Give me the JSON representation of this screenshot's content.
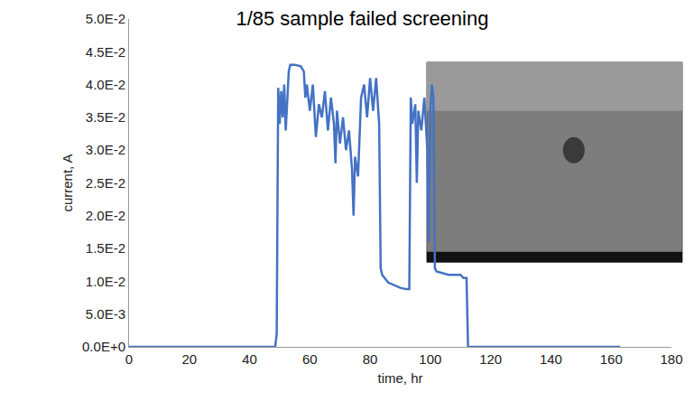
{
  "chart_data": {
    "type": "line",
    "title": "1/85 sample failed screening",
    "x_label": "time, hr",
    "y_label": "current, A",
    "color": "#4472c4",
    "grid": false,
    "x": [
      0,
      48.5,
      49,
      49.5,
      50,
      50.5,
      51,
      51.5,
      52,
      52.5,
      53,
      53.5,
      55,
      57,
      58,
      58.5,
      59,
      60,
      61,
      62,
      63,
      64,
      65,
      66,
      67,
      68,
      68.5,
      69,
      70,
      71,
      72,
      73,
      74,
      74.5,
      75,
      76,
      77,
      78,
      79,
      80,
      81,
      82,
      83,
      83.5,
      84,
      86,
      88,
      90,
      92,
      93,
      93.5,
      94,
      95,
      95.5,
      96,
      97,
      98,
      99,
      99.5,
      100,
      100.5,
      101,
      101.5,
      102,
      106,
      110,
      111,
      112,
      112.5,
      163
    ],
    "values": [
      0,
      0,
      0.002,
      0.0395,
      0.034,
      0.039,
      0.035,
      0.04,
      0.033,
      0.038,
      0.042,
      0.043,
      0.043,
      0.0428,
      0.042,
      0.038,
      0.04,
      0.036,
      0.04,
      0.032,
      0.037,
      0.035,
      0.039,
      0.033,
      0.038,
      0.034,
      0.028,
      0.036,
      0.031,
      0.035,
      0.03,
      0.033,
      0.027,
      0.02,
      0.029,
      0.026,
      0.038,
      0.04,
      0.035,
      0.041,
      0.036,
      0.041,
      0.034,
      0.012,
      0.011,
      0.0098,
      0.0094,
      0.009,
      0.0088,
      0.0088,
      0.038,
      0.034,
      0.037,
      0.025,
      0.036,
      0.033,
      0.038,
      0.03,
      0.016,
      0.036,
      0.04,
      0.038,
      0.012,
      0.0115,
      0.011,
      0.011,
      0.0105,
      0.0105,
      0,
      0
    ],
    "xlim": [
      0,
      180
    ],
    "xticks": [
      0,
      20,
      40,
      60,
      80,
      100,
      120,
      140,
      160,
      180
    ],
    "ylim": [
      0,
      0.05
    ],
    "yticks": [
      {
        "value": 0,
        "label": "0.0E+0"
      },
      {
        "value": 0.005,
        "label": "5.0E-3"
      },
      {
        "value": 0.01,
        "label": "1.0E-2"
      },
      {
        "value": 0.015,
        "label": "1.5E-2"
      },
      {
        "value": 0.02,
        "label": "2.0E-2"
      },
      {
        "value": 0.025,
        "label": "2.5E-2"
      },
      {
        "value": 0.03,
        "label": "3.0E-2"
      },
      {
        "value": 0.035,
        "label": "3.5E-2"
      },
      {
        "value": 0.04,
        "label": "4.0E-2"
      },
      {
        "value": 0.045,
        "label": "4.5E-2"
      },
      {
        "value": 0.05,
        "label": "5.0E-2"
      }
    ]
  }
}
